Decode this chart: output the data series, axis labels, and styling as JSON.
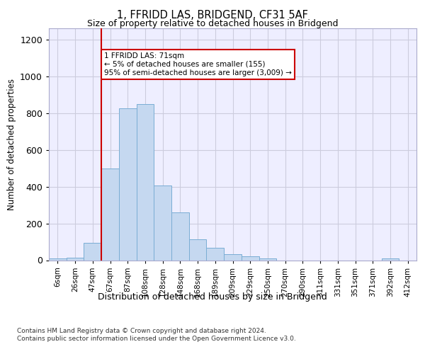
{
  "title_line1": "1, FFRIDD LAS, BRIDGEND, CF31 5AF",
  "title_line2": "Size of property relative to detached houses in Bridgend",
  "xlabel": "Distribution of detached houses by size in Bridgend",
  "ylabel": "Number of detached properties",
  "bar_labels": [
    "6sqm",
    "26sqm",
    "47sqm",
    "67sqm",
    "87sqm",
    "108sqm",
    "128sqm",
    "148sqm",
    "168sqm",
    "189sqm",
    "209sqm",
    "229sqm",
    "250sqm",
    "270sqm",
    "290sqm",
    "311sqm",
    "331sqm",
    "351sqm",
    "371sqm",
    "392sqm",
    "412sqm"
  ],
  "bar_values": [
    8,
    12,
    95,
    500,
    825,
    850,
    405,
    258,
    115,
    68,
    32,
    20,
    10,
    0,
    0,
    0,
    0,
    0,
    0,
    8,
    0
  ],
  "bar_color": "#c5d8f0",
  "bar_edge_color": "#7aadd4",
  "vline_color": "#cc0000",
  "annotation_text": "1 FFRIDD LAS: 71sqm\n← 5% of detached houses are smaller (155)\n95% of semi-detached houses are larger (3,009) →",
  "annotation_box_color": "#ffffff",
  "annotation_box_edge_color": "#cc0000",
  "ylim": [
    0,
    1260
  ],
  "yticks": [
    0,
    200,
    400,
    600,
    800,
    1000,
    1200
  ],
  "footer_line1": "Contains HM Land Registry data © Crown copyright and database right 2024.",
  "footer_line2": "Contains public sector information licensed under the Open Government Licence v3.0.",
  "bg_color": "#eeeeff",
  "grid_color": "#ccccdd",
  "vline_bar_index": 3
}
